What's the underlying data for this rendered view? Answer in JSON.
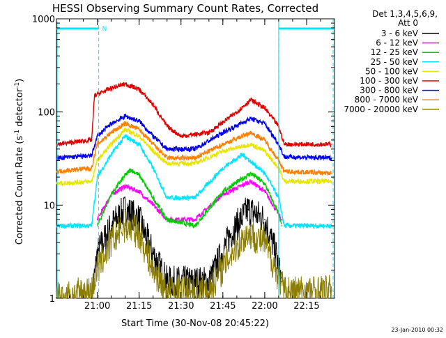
{
  "chart_data": {
    "type": "line",
    "title": "HESSI Observing Summary Count Rates, Corrected",
    "xlabel": "Start Time (30-Nov-08 20:45:22)",
    "ylabel": "Corrected Count Rate (s",
    "ylabel_sup1": "-1",
    "ylabel_mid": " detector",
    "ylabel_sup2": "-1",
    "ylabel_end": ")",
    "y_scale": "log",
    "ylim": [
      1,
      1000
    ],
    "xlim": [
      "20:45:22",
      "22:25:00"
    ],
    "x_ticks": [
      "21:00",
      "21:15",
      "21:30",
      "21:45",
      "22:00",
      "22:15"
    ],
    "y_ticks": [
      "1",
      "10",
      "100",
      "1000"
    ],
    "legend_title_line1": "Det 1,3,4,5,6,9,",
    "legend_title_line2": "Att 0",
    "legend_position": "right",
    "footer_date": "23-Jan-2010 00:32",
    "flag_label": "N",
    "night_flag_intervals": [
      [
        "20:45:22",
        "21:00:30"
      ],
      [
        "22:05:00",
        "22:25:00"
      ]
    ],
    "dashed_markers": [
      "21:00:30",
      "22:05:00",
      "22:24:30"
    ],
    "solid_markers": [
      "20:45:22",
      "22:05:00"
    ],
    "series": [
      {
        "name": "3 - 6 keV",
        "color": "#000000",
        "noisy": true,
        "points": [
          [
            "20:58",
            1
          ],
          [
            "21:00",
            3
          ],
          [
            "21:05",
            6
          ],
          [
            "21:10",
            9
          ],
          [
            "21:15",
            7
          ],
          [
            "21:20",
            3
          ],
          [
            "21:25",
            1.5
          ],
          [
            "21:40",
            1.5
          ],
          [
            "21:48",
            5
          ],
          [
            "21:54",
            9
          ],
          [
            "22:00",
            7
          ],
          [
            "22:04",
            3
          ],
          [
            "22:06",
            1.5
          ]
        ]
      },
      {
        "name": "6 - 12 keV",
        "color": "#ff00ff",
        "points": [
          [
            "21:00",
            7
          ],
          [
            "21:05",
            13
          ],
          [
            "21:10",
            16
          ],
          [
            "21:15",
            14
          ],
          [
            "21:20",
            10
          ],
          [
            "21:25",
            7
          ],
          [
            "21:35",
            7
          ],
          [
            "21:45",
            13
          ],
          [
            "21:55",
            18
          ],
          [
            "22:00",
            14
          ],
          [
            "22:05",
            8
          ],
          [
            "22:06",
            7
          ]
        ]
      },
      {
        "name": "12 - 25 keV",
        "color": "#00cc00",
        "points": [
          [
            "21:00",
            6
          ],
          [
            "21:05",
            13
          ],
          [
            "21:10",
            21
          ],
          [
            "21:12",
            24
          ],
          [
            "21:15",
            21
          ],
          [
            "21:20",
            12
          ],
          [
            "21:25",
            7
          ],
          [
            "21:35",
            6
          ],
          [
            "21:45",
            14
          ],
          [
            "21:55",
            22
          ],
          [
            "22:00",
            17
          ],
          [
            "22:05",
            8
          ],
          [
            "22:06",
            6
          ]
        ]
      },
      {
        "name": "25 - 50 keV",
        "color": "#00e5ff",
        "points": [
          [
            "20:45:22",
            6
          ],
          [
            "20:58",
            6
          ],
          [
            "21:00",
            20
          ],
          [
            "21:05",
            35
          ],
          [
            "21:10",
            55
          ],
          [
            "21:15",
            45
          ],
          [
            "21:20",
            25
          ],
          [
            "21:25",
            12
          ],
          [
            "21:35",
            12
          ],
          [
            "21:45",
            25
          ],
          [
            "21:52",
            35
          ],
          [
            "22:00",
            22
          ],
          [
            "22:05",
            12
          ],
          [
            "22:07",
            6
          ],
          [
            "22:24",
            6
          ]
        ]
      },
      {
        "name": "50 - 100 keV",
        "color": "#e6e600",
        "points": [
          [
            "20:45:22",
            17
          ],
          [
            "20:58",
            18
          ],
          [
            "21:00",
            30
          ],
          [
            "21:05",
            45
          ],
          [
            "21:10",
            65
          ],
          [
            "21:15",
            55
          ],
          [
            "21:20",
            38
          ],
          [
            "21:25",
            28
          ],
          [
            "21:35",
            28
          ],
          [
            "21:45",
            38
          ],
          [
            "21:55",
            45
          ],
          [
            "22:00",
            38
          ],
          [
            "22:05",
            25
          ],
          [
            "22:07",
            18
          ],
          [
            "22:24",
            18
          ]
        ]
      },
      {
        "name": "100 - 300 keV",
        "color": "#e00000",
        "points": [
          [
            "20:45:22",
            45
          ],
          [
            "20:58",
            50
          ],
          [
            "20:59",
            150
          ],
          [
            "21:05",
            180
          ],
          [
            "21:10",
            200
          ],
          [
            "21:15",
            175
          ],
          [
            "21:20",
            120
          ],
          [
            "21:25",
            70
          ],
          [
            "21:30",
            55
          ],
          [
            "21:40",
            60
          ],
          [
            "21:50",
            100
          ],
          [
            "21:55",
            135
          ],
          [
            "22:00",
            110
          ],
          [
            "22:05",
            70
          ],
          [
            "22:07",
            45
          ],
          [
            "22:24",
            45
          ]
        ]
      },
      {
        "name": "300 - 800 keV",
        "color": "#0000ee",
        "points": [
          [
            "20:45:22",
            32
          ],
          [
            "20:58",
            34
          ],
          [
            "21:00",
            55
          ],
          [
            "21:05",
            75
          ],
          [
            "21:10",
            90
          ],
          [
            "21:15",
            80
          ],
          [
            "21:20",
            55
          ],
          [
            "21:25",
            40
          ],
          [
            "21:35",
            40
          ],
          [
            "21:45",
            60
          ],
          [
            "21:55",
            85
          ],
          [
            "22:00",
            75
          ],
          [
            "22:05",
            45
          ],
          [
            "22:07",
            33
          ],
          [
            "22:24",
            32
          ]
        ]
      },
      {
        "name": "800 - 7000 keV",
        "color": "#ff7f00",
        "points": [
          [
            "20:45:22",
            23
          ],
          [
            "20:58",
            25
          ],
          [
            "21:00",
            45
          ],
          [
            "21:05",
            60
          ],
          [
            "21:10",
            75
          ],
          [
            "21:15",
            65
          ],
          [
            "21:20",
            45
          ],
          [
            "21:25",
            32
          ],
          [
            "21:35",
            32
          ],
          [
            "21:45",
            45
          ],
          [
            "21:55",
            60
          ],
          [
            "22:00",
            50
          ],
          [
            "22:05",
            30
          ],
          [
            "22:07",
            23
          ],
          [
            "22:24",
            22
          ]
        ]
      },
      {
        "name": "7000 - 20000 keV",
        "color": "#8b7d00",
        "noisy": true,
        "points": [
          [
            "20:45:22",
            1
          ],
          [
            "20:58",
            1.2
          ],
          [
            "21:00",
            2
          ],
          [
            "21:05",
            4
          ],
          [
            "21:10",
            6
          ],
          [
            "21:15",
            5
          ],
          [
            "21:20",
            2
          ],
          [
            "21:25",
            1.2
          ],
          [
            "21:40",
            1.2
          ],
          [
            "21:48",
            3
          ],
          [
            "21:54",
            5
          ],
          [
            "22:00",
            4
          ],
          [
            "22:04",
            2
          ],
          [
            "22:07",
            1.2
          ],
          [
            "22:24",
            1.2
          ]
        ]
      }
    ]
  }
}
